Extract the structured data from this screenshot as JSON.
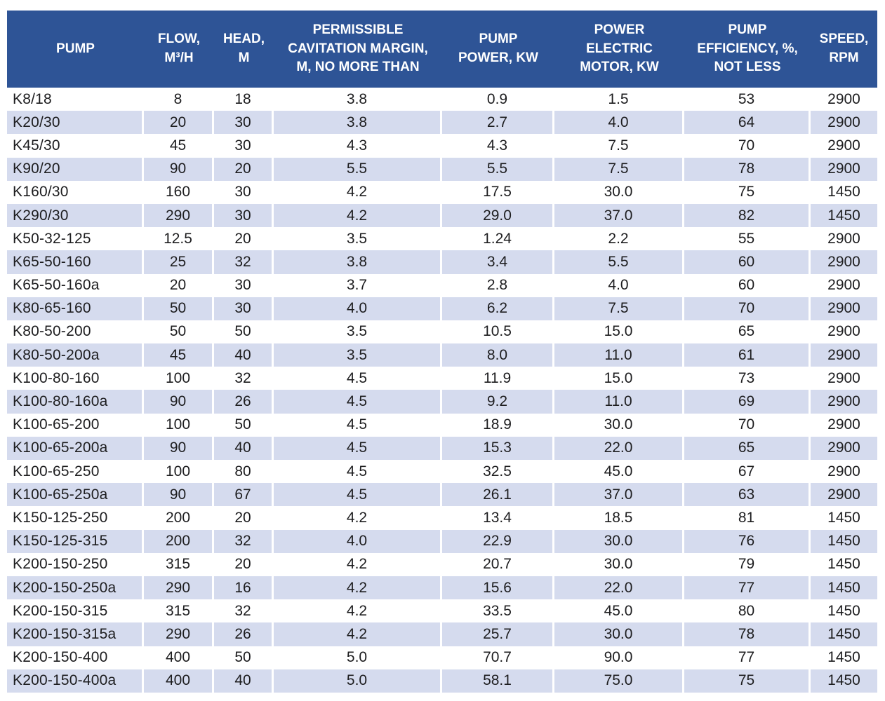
{
  "colors": {
    "header_bg": "#2E5496",
    "header_text": "#FFFFFF",
    "row_odd_bg": "#FFFFFF",
    "row_even_bg": "#D5DBEE",
    "cell_text": "#1D1D1F",
    "separator": "#FFFFFF"
  },
  "chart_data": {
    "type": "table",
    "columns": [
      "PUMP",
      "FLOW,\nM³/H",
      "HEAD,\nM",
      "PERMISSIBLE\nCAVITATION MARGIN,\nM, NO MORE THAN",
      "PUMP\nPOWER, KW",
      "POWER\nELECTRIC\nMOTOR, KW",
      "PUMP\nEFFICIENCY, %,\nNOT LESS",
      "SPEED,\nRPM"
    ],
    "rows": [
      [
        "K8/18",
        "8",
        "18",
        "3.8",
        "0.9",
        "1.5",
        "53",
        "2900"
      ],
      [
        "K20/30",
        "20",
        "30",
        "3.8",
        "2.7",
        "4.0",
        "64",
        "2900"
      ],
      [
        "K45/30",
        "45",
        "30",
        "4.3",
        "4.3",
        "7.5",
        "70",
        "2900"
      ],
      [
        "K90/20",
        "90",
        "20",
        "5.5",
        "5.5",
        "7.5",
        "78",
        "2900"
      ],
      [
        "K160/30",
        "160",
        "30",
        "4.2",
        "17.5",
        "30.0",
        "75",
        "1450"
      ],
      [
        "K290/30",
        "290",
        "30",
        "4.2",
        "29.0",
        "37.0",
        "82",
        "1450"
      ],
      [
        "K50-32-125",
        "12.5",
        "20",
        "3.5",
        "1.24",
        "2.2",
        "55",
        "2900"
      ],
      [
        "K65-50-160",
        "25",
        "32",
        "3.8",
        "3.4",
        "5.5",
        "60",
        "2900"
      ],
      [
        "K65-50-160a",
        "20",
        "30",
        "3.7",
        "2.8",
        "4.0",
        "60",
        "2900"
      ],
      [
        "K80-65-160",
        "50",
        "30",
        "4.0",
        "6.2",
        "7.5",
        "70",
        "2900"
      ],
      [
        "K80-50-200",
        "50",
        "50",
        "3.5",
        "10.5",
        "15.0",
        "65",
        "2900"
      ],
      [
        "K80-50-200a",
        "45",
        "40",
        "3.5",
        "8.0",
        "11.0",
        "61",
        "2900"
      ],
      [
        "K100-80-160",
        "100",
        "32",
        "4.5",
        "11.9",
        "15.0",
        "73",
        "2900"
      ],
      [
        "K100-80-160a",
        "90",
        "26",
        "4.5",
        "9.2",
        "11.0",
        "69",
        "2900"
      ],
      [
        "K100-65-200",
        "100",
        "50",
        "4.5",
        "18.9",
        "30.0",
        "70",
        "2900"
      ],
      [
        "K100-65-200a",
        "90",
        "40",
        "4.5",
        "15.3",
        "22.0",
        "65",
        "2900"
      ],
      [
        "K100-65-250",
        "100",
        "80",
        "4.5",
        "32.5",
        "45.0",
        "67",
        "2900"
      ],
      [
        "K100-65-250a",
        "90",
        "67",
        "4.5",
        "26.1",
        "37.0",
        "63",
        "2900"
      ],
      [
        "K150-125-250",
        "200",
        "20",
        "4.2",
        "13.4",
        "18.5",
        "81",
        "1450"
      ],
      [
        "K150-125-315",
        "200",
        "32",
        "4.0",
        "22.9",
        "30.0",
        "76",
        "1450"
      ],
      [
        "K200-150-250",
        "315",
        "20",
        "4.2",
        "20.7",
        "30.0",
        "79",
        "1450"
      ],
      [
        "K200-150-250a",
        "290",
        "16",
        "4.2",
        "15.6",
        "22.0",
        "77",
        "1450"
      ],
      [
        "K200-150-315",
        "315",
        "32",
        "4.2",
        "33.5",
        "45.0",
        "80",
        "1450"
      ],
      [
        "K200-150-315a",
        "290",
        "26",
        "4.2",
        "25.7",
        "30.0",
        "78",
        "1450"
      ],
      [
        "K200-150-400",
        "400",
        "50",
        "5.0",
        "70.7",
        "90.0",
        "77",
        "1450"
      ],
      [
        "K200-150-400a",
        "400",
        "40",
        "5.0",
        "58.1",
        "75.0",
        "75",
        "1450"
      ]
    ]
  }
}
